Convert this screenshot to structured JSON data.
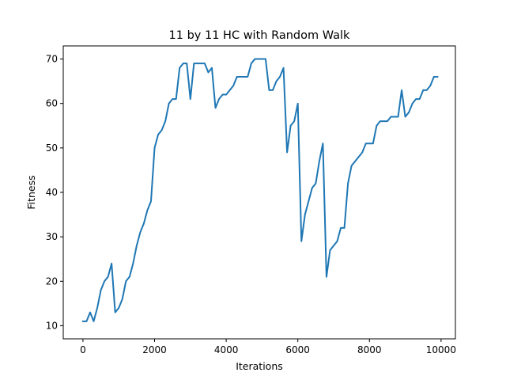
{
  "chart_data": {
    "type": "line",
    "title": "11 by 11 HC with Random Walk",
    "xlabel": "Iterations",
    "ylabel": "Fitness",
    "xlim": [
      -550,
      10400
    ],
    "ylim": [
      7.05,
      72.95
    ],
    "xticks": [
      0,
      2000,
      4000,
      6000,
      8000,
      10000
    ],
    "yticks": [
      10,
      20,
      30,
      40,
      50,
      60,
      70
    ],
    "grid": false,
    "line_color": "#1f77b4",
    "series": [
      {
        "x": [
          0,
          100,
          200,
          300,
          400,
          500,
          600,
          700,
          800,
          900,
          1000,
          1100,
          1200,
          1300,
          1400,
          1500,
          1600,
          1700,
          1800,
          1900,
          2000,
          2100,
          2200,
          2300,
          2400,
          2500,
          2600,
          2700,
          2800,
          2900,
          3000,
          3100,
          3200,
          3300,
          3400,
          3500,
          3600,
          3700,
          3800,
          3900,
          4000,
          4100,
          4200,
          4300,
          4400,
          4500,
          4600,
          4700,
          4800,
          4900,
          5000,
          5100,
          5200,
          5300,
          5400,
          5500,
          5600,
          5700,
          5800,
          5900,
          6000,
          6100,
          6200,
          6300,
          6400,
          6500,
          6600,
          6700,
          6800,
          6900,
          7000,
          7100,
          7200,
          7300,
          7400,
          7500,
          7600,
          7700,
          7800,
          7900,
          8000,
          8100,
          8200,
          8300,
          8400,
          8500,
          8600,
          8700,
          8800,
          8900,
          9000,
          9100,
          9200,
          9300,
          9400,
          9500,
          9600,
          9700,
          9800,
          9900
        ],
        "values": [
          11,
          11,
          13,
          11,
          14,
          18,
          20,
          21,
          24,
          13,
          14,
          16,
          20,
          21,
          24,
          28,
          31,
          33,
          36,
          38,
          50,
          53,
          54,
          56,
          60,
          61,
          61,
          68,
          69,
          69,
          61,
          69,
          69,
          69,
          69,
          67,
          68,
          59,
          61,
          62,
          62,
          63,
          64,
          66,
          66,
          66,
          66,
          69,
          70,
          70,
          70,
          70,
          63,
          63,
          65,
          66,
          68,
          49,
          55,
          56,
          60,
          29,
          35,
          38,
          41,
          42,
          47,
          51,
          21,
          27,
          28,
          29,
          32,
          32,
          42,
          46,
          47,
          48,
          49,
          51,
          51,
          51,
          55,
          56,
          56,
          56,
          57,
          57,
          57,
          63,
          57,
          58,
          60,
          61,
          61,
          63,
          63,
          64,
          66,
          66
        ]
      }
    ]
  }
}
